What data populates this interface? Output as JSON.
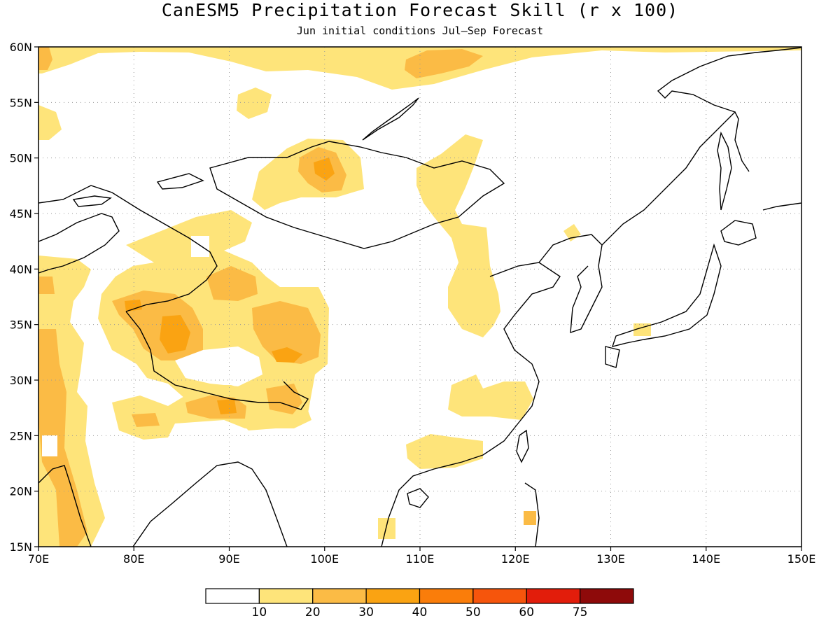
{
  "title": "CanESM5 Precipitation Forecast Skill (r x 100)",
  "subtitle": "Jun initial conditions   Jul—Sep Forecast",
  "map": {
    "lon_range": [
      70,
      150
    ],
    "lat_range": [
      15,
      60
    ],
    "lon_ticks": [
      "70E",
      "80E",
      "90E",
      "100E",
      "110E",
      "120E",
      "130E",
      "140E",
      "150E"
    ],
    "lat_ticks": [
      "15N",
      "20N",
      "25N",
      "30N",
      "35N",
      "40N",
      "45N",
      "50N",
      "55N",
      "60N"
    ],
    "gridlines": "dotted"
  },
  "colorbar": {
    "colors": [
      "#ffffff",
      "#fee47a",
      "#fbbb45",
      "#faa312",
      "#fa7d0a",
      "#f6550c",
      "#e21d0b",
      "#8e0a0a"
    ],
    "labels": [
      "10",
      "20",
      "30",
      "40",
      "50",
      "60",
      "75"
    ]
  },
  "skill_regions": [
    {
      "level": "10-20",
      "description": "broad band along northern edge 55-60N"
    },
    {
      "level": "10-20",
      "description": "western Mongolia / Altai 46-52N"
    },
    {
      "level": "20-30",
      "description": "Altai core near 100E 49N"
    },
    {
      "level": "10-20",
      "description": "Tibetan Plateau and Tarim region 30-41N"
    },
    {
      "level": "20-30",
      "description": "western Tibet, central Tibet and Qinghai cores"
    },
    {
      "level": "30-40",
      "description": "small cores near 84E 34N and 96E 32N"
    },
    {
      "level": "10-20",
      "description": "eastern Himalaya / NE India 26-30N"
    },
    {
      "level": "10-20",
      "description": "Inner Mongolia to northern China 106-112E 35-47N"
    },
    {
      "level": "10-20",
      "description": "southeast China 110-118E 26-30N"
    },
    {
      "level": "10-20",
      "description": "south China coast 109-116E 22-24N"
    },
    {
      "level": "10-30",
      "description": "western India 70-76E 15-36N"
    }
  ]
}
